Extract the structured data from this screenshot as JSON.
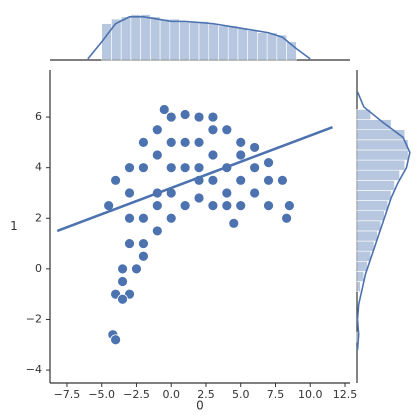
{
  "chart_data": [
    {
      "type": "scatter",
      "x_label": "0",
      "y_label": "1",
      "color": "#4c72b0",
      "xlim": [
        -8.72,
        12.86
      ],
      "ylim": [
        -4.51,
        7.86
      ],
      "xticks": [
        {
          "value": -7.5,
          "label": "−7.5"
        },
        {
          "value": -5,
          "label": "−5.0"
        },
        {
          "value": -2.5,
          "label": "−2.5"
        },
        {
          "value": 0,
          "label": "0.0"
        },
        2.5,
        {
          "value": 5,
          "label": "5.0"
        },
        7.5,
        {
          "value": 10,
          "label": "10.0"
        },
        12.5
      ],
      "yticks": [
        {
          "value": -4,
          "label": "−4"
        },
        {
          "value": -2,
          "label": "−2"
        },
        0,
        2,
        4,
        6
      ],
      "x": [
        -4,
        -3.5,
        -4.5,
        -4,
        -3,
        -2,
        -1,
        0,
        -0.5,
        1,
        2,
        3,
        4,
        5,
        6,
        7,
        8,
        8.5,
        8.3,
        7,
        6,
        5,
        4.5,
        4,
        3,
        2,
        1,
        0,
        -1,
        -2,
        -2.5,
        -3,
        -3.5,
        -4.2,
        -4,
        -2,
        -1,
        0,
        0,
        1,
        1,
        2,
        2,
        3,
        3,
        4,
        5,
        6,
        -3,
        -3,
        -2,
        -1,
        0,
        3,
        -1,
        -2,
        -3,
        -3.5,
        7,
        5,
        4,
        2
      ],
      "y": [
        -1,
        -0.5,
        2.5,
        3.5,
        4,
        5,
        5.5,
        6,
        6.3,
        6.1,
        6,
        6,
        5.5,
        5,
        4.8,
        4.2,
        3.5,
        2.5,
        2,
        2.5,
        3,
        2.5,
        1.8,
        2.5,
        2.5,
        2.8,
        2.5,
        2,
        1.5,
        0.5,
        0,
        -1,
        -1.2,
        -2.6,
        -2.8,
        2,
        3,
        3,
        4,
        4,
        5,
        4,
        5,
        3.5,
        4.5,
        4,
        3.5,
        4,
        2,
        3,
        4,
        4.5,
        5,
        5.5,
        2.5,
        1,
        1,
        0,
        3.5,
        4.5,
        3,
        3.5
      ],
      "regression_line": {
        "x": [
          -8.2,
          11.6
        ],
        "y": [
          1.5,
          5.6
        ]
      }
    },
    {
      "type": "histogram",
      "orientation": "vertical",
      "color": "#4c72b0",
      "ylim": [
        0,
        0.22
      ],
      "bins": [
        -5,
        -4.3,
        -3.6,
        -2.9,
        -2.2,
        -1.5,
        -0.8,
        -0.1,
        0.6,
        1.3,
        2,
        2.7,
        3.4,
        4.1,
        4.8,
        5.5,
        6.2,
        6.9,
        7.6,
        8.3,
        9
      ],
      "values": [
        0.16,
        0.18,
        0.19,
        0.2,
        0.2,
        0.19,
        0.18,
        0.18,
        0.17,
        0.17,
        0.17,
        0.16,
        0.15,
        0.15,
        0.14,
        0.13,
        0.12,
        0.12,
        0.11,
        0.08
      ],
      "kde": {
        "x": [
          -6,
          -5,
          -4,
          -3,
          -2,
          -1,
          0,
          1,
          2,
          3,
          4,
          5,
          6,
          7,
          8,
          9,
          10
        ],
        "values": [
          0.005,
          0.08,
          0.16,
          0.19,
          0.19,
          0.18,
          0.17,
          0.17,
          0.165,
          0.16,
          0.15,
          0.14,
          0.13,
          0.12,
          0.1,
          0.05,
          0.005
        ]
      }
    },
    {
      "type": "histogram",
      "orientation": "horizontal",
      "color": "#4c72b0",
      "xlim": [
        0,
        0.34
      ],
      "bins": [
        -2.9,
        -2.5,
        -2.1,
        -1.7,
        -1.3,
        -0.9,
        -0.5,
        -0.1,
        0.3,
        0.7,
        1.1,
        1.5,
        1.9,
        2.3,
        2.7,
        3.1,
        3.5,
        3.9,
        4.3,
        4.7,
        5.1,
        5.5,
        5.9,
        6.3
      ],
      "values": [
        0.01,
        0,
        0,
        0,
        0,
        0.02,
        0.04,
        0.06,
        0.08,
        0.1,
        0.12,
        0.14,
        0.16,
        0.18,
        0.2,
        0.22,
        0.25,
        0.28,
        0.3,
        0.3,
        0.28,
        0.2,
        0.08
      ],
      "kde": {
        "x": [
          -3.2,
          -2.6,
          -2,
          -1.4,
          -0.8,
          -0.2,
          0.4,
          1,
          1.6,
          2.2,
          2.8,
          3.4,
          4,
          4.6,
          5.2,
          5.8,
          6.4,
          7
        ],
        "values": [
          0.003,
          0.01,
          0.003,
          0.01,
          0.03,
          0.05,
          0.08,
          0.11,
          0.14,
          0.17,
          0.2,
          0.24,
          0.29,
          0.31,
          0.27,
          0.15,
          0.04,
          0.003
        ]
      }
    }
  ]
}
